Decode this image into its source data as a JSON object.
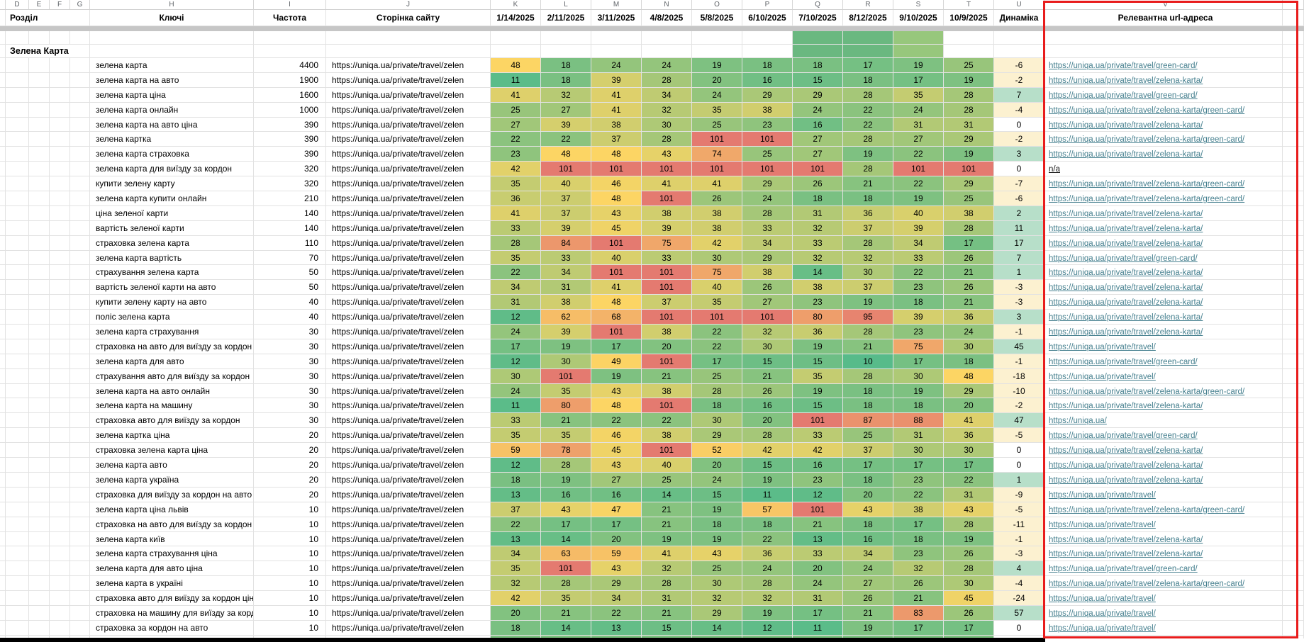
{
  "sheet": {
    "column_letters": [
      "D",
      "E",
      "F",
      "G",
      "H",
      "I",
      "J",
      "K",
      "L",
      "M",
      "N",
      "O",
      "P",
      "Q",
      "R",
      "S",
      "T",
      "U",
      "V"
    ],
    "headers": {
      "section": "Розділ",
      "keywords": "Ключі",
      "frequency": "Частота",
      "page": "Сторінка сайту",
      "dynamics": "Динаміка",
      "relevant_url": "Релевантна url-адреса"
    },
    "dates": [
      "1/14/2025",
      "2/11/2025",
      "3/11/2025",
      "4/8/2025",
      "5/8/2025",
      "6/10/2025",
      "7/10/2025",
      "8/12/2025",
      "9/10/2025",
      "10/9/2025"
    ],
    "section_title": "Зелена Карта",
    "page_url_clipped": "https://uniqa.ua/private/travel/zelen",
    "rows": [
      {
        "keyword": "зелена карта",
        "frequency": 4400,
        "positions": [
          48,
          18,
          24,
          24,
          19,
          18,
          18,
          17,
          19,
          25
        ],
        "dynamics": -6,
        "url": "https://uniqa.ua/private/travel/green-card/"
      },
      {
        "keyword": "зелена карта на авто",
        "frequency": 1900,
        "positions": [
          11,
          18,
          39,
          28,
          20,
          16,
          15,
          18,
          17,
          19
        ],
        "dynamics": -2,
        "url": "https://uniqa.ua/private/travel/zelena-karta/"
      },
      {
        "keyword": "зелена карта ціна",
        "frequency": 1600,
        "positions": [
          41,
          32,
          41,
          34,
          24,
          29,
          29,
          28,
          35,
          28
        ],
        "dynamics": 7,
        "url": "https://uniqa.ua/private/travel/green-card/"
      },
      {
        "keyword": "зелена карта онлайн",
        "frequency": 1000,
        "positions": [
          25,
          27,
          41,
          32,
          35,
          38,
          24,
          22,
          24,
          28
        ],
        "dynamics": -4,
        "url": "https://uniqa.ua/private/travel/zelena-karta/green-card/"
      },
      {
        "keyword": "зелена карта на авто ціна",
        "frequency": 390,
        "positions": [
          27,
          39,
          38,
          30,
          25,
          23,
          16,
          22,
          31,
          31
        ],
        "dynamics": 0,
        "url": "https://uniqa.ua/private/travel/zelena-karta/"
      },
      {
        "keyword": "зелена картка",
        "frequency": 390,
        "positions": [
          22,
          22,
          37,
          28,
          101,
          101,
          27,
          28,
          27,
          29
        ],
        "dynamics": -2,
        "url": "https://uniqa.ua/private/travel/zelena-karta/green-card/"
      },
      {
        "keyword": "зелена карта страховка",
        "frequency": 390,
        "positions": [
          23,
          48,
          48,
          43,
          74,
          25,
          27,
          19,
          22,
          19
        ],
        "dynamics": 3,
        "url": "https://uniqa.ua/private/travel/zelena-karta/"
      },
      {
        "keyword": "зелена карта для виїзду за кордон",
        "frequency": 320,
        "positions": [
          42,
          101,
          101,
          101,
          101,
          101,
          101,
          28,
          101,
          101
        ],
        "dynamics": 0,
        "url": "n/a"
      },
      {
        "keyword": "купити зелену карту",
        "frequency": 320,
        "positions": [
          35,
          40,
          46,
          41,
          41,
          29,
          26,
          21,
          22,
          29
        ],
        "dynamics": -7,
        "url": "https://uniqa.ua/private/travel/zelena-karta/green-card/"
      },
      {
        "keyword": "зелена карта купити онлайн",
        "frequency": 210,
        "positions": [
          36,
          37,
          48,
          101,
          26,
          24,
          18,
          18,
          19,
          25
        ],
        "dynamics": -6,
        "url": "https://uniqa.ua/private/travel/zelena-karta/green-card/"
      },
      {
        "keyword": "ціна зеленої карти",
        "frequency": 140,
        "positions": [
          41,
          37,
          43,
          38,
          38,
          28,
          31,
          36,
          40,
          38
        ],
        "dynamics": 2,
        "url": "https://uniqa.ua/private/travel/zelena-karta/"
      },
      {
        "keyword": "вартість зеленої карти",
        "frequency": 140,
        "positions": [
          33,
          39,
          45,
          39,
          38,
          33,
          32,
          37,
          39,
          28
        ],
        "dynamics": 11,
        "url": "https://uniqa.ua/private/travel/zelena-karta/"
      },
      {
        "keyword": "страховка зелена карта",
        "frequency": 110,
        "positions": [
          28,
          84,
          101,
          75,
          42,
          34,
          33,
          28,
          34,
          17
        ],
        "dynamics": 17,
        "url": "https://uniqa.ua/private/travel/zelena-karta/"
      },
      {
        "keyword": "зелена карта вартість",
        "frequency": 70,
        "positions": [
          35,
          33,
          40,
          33,
          30,
          29,
          32,
          32,
          33,
          26
        ],
        "dynamics": 7,
        "url": "https://uniqa.ua/private/travel/green-card/"
      },
      {
        "keyword": "страхування зелена карта",
        "frequency": 50,
        "positions": [
          22,
          34,
          101,
          101,
          75,
          38,
          14,
          30,
          22,
          21
        ],
        "dynamics": 1,
        "url": "https://uniqa.ua/private/travel/zelena-karta/"
      },
      {
        "keyword": "вартість зеленої карти на авто",
        "frequency": 50,
        "positions": [
          34,
          31,
          41,
          101,
          40,
          26,
          38,
          37,
          23,
          26
        ],
        "dynamics": -3,
        "url": "https://uniqa.ua/private/travel/zelena-karta/"
      },
      {
        "keyword": "купити зелену карту на авто",
        "frequency": 40,
        "positions": [
          31,
          38,
          48,
          37,
          35,
          27,
          23,
          19,
          18,
          21
        ],
        "dynamics": -3,
        "url": "https://uniqa.ua/private/travel/zelena-karta/"
      },
      {
        "keyword": "поліс зелена карта",
        "frequency": 40,
        "positions": [
          12,
          62,
          68,
          101,
          101,
          101,
          80,
          95,
          39,
          36
        ],
        "dynamics": 3,
        "url": "https://uniqa.ua/private/travel/zelena-karta/"
      },
      {
        "keyword": "зелена карта страхування",
        "frequency": 30,
        "positions": [
          24,
          39,
          101,
          38,
          22,
          32,
          36,
          28,
          23,
          24
        ],
        "dynamics": -1,
        "url": "https://uniqa.ua/private/travel/zelena-karta/"
      },
      {
        "keyword": "страховка на авто для виїзду за кордон",
        "frequency": 30,
        "positions": [
          17,
          19,
          17,
          20,
          22,
          30,
          19,
          21,
          75,
          30
        ],
        "dynamics": 45,
        "url": "https://uniqa.ua/private/travel/"
      },
      {
        "keyword": "зелена карта для авто",
        "frequency": 30,
        "positions": [
          12,
          30,
          49,
          101,
          17,
          15,
          15,
          10,
          17,
          18
        ],
        "dynamics": -1,
        "url": "https://uniqa.ua/private/travel/green-card/"
      },
      {
        "keyword": "страхування авто для виїзду за кордон",
        "frequency": 30,
        "positions": [
          30,
          101,
          19,
          21,
          25,
          21,
          35,
          28,
          30,
          48
        ],
        "dynamics": -18,
        "url": "https://uniqa.ua/private/travel/"
      },
      {
        "keyword": "зелена карта на авто онлайн",
        "frequency": 30,
        "positions": [
          24,
          35,
          43,
          38,
          28,
          26,
          19,
          18,
          19,
          29
        ],
        "dynamics": -10,
        "url": "https://uniqa.ua/private/travel/zelena-karta/green-card/"
      },
      {
        "keyword": "зелена карта на машину",
        "frequency": 30,
        "positions": [
          11,
          80,
          48,
          101,
          18,
          16,
          15,
          18,
          18,
          20
        ],
        "dynamics": -2,
        "url": "https://uniqa.ua/private/travel/zelena-karta/"
      },
      {
        "keyword": "страховка авто для виїзду за кордон",
        "frequency": 30,
        "positions": [
          33,
          21,
          22,
          22,
          30,
          20,
          101,
          87,
          88,
          41
        ],
        "dynamics": 47,
        "url": "https://uniqa.ua/"
      },
      {
        "keyword": "зелена картка ціна",
        "frequency": 20,
        "positions": [
          35,
          35,
          46,
          38,
          29,
          28,
          33,
          25,
          31,
          36
        ],
        "dynamics": -5,
        "url": "https://uniqa.ua/private/travel/green-card/"
      },
      {
        "keyword": "страховка зелена карта ціна",
        "frequency": 20,
        "positions": [
          59,
          78,
          45,
          101,
          52,
          42,
          42,
          37,
          30,
          30
        ],
        "dynamics": 0,
        "url": "https://uniqa.ua/private/travel/zelena-karta/"
      },
      {
        "keyword": "зелена карта авто",
        "frequency": 20,
        "positions": [
          12,
          28,
          43,
          40,
          20,
          15,
          16,
          17,
          17,
          17
        ],
        "dynamics": 0,
        "url": "https://uniqa.ua/private/travel/zelena-karta/"
      },
      {
        "keyword": "зелена карта україна",
        "frequency": 20,
        "positions": [
          18,
          19,
          27,
          25,
          24,
          19,
          23,
          18,
          23,
          22
        ],
        "dynamics": 1,
        "url": "https://uniqa.ua/private/travel/zelena-karta/"
      },
      {
        "keyword": "страховка для виїзду за кордон на авто",
        "frequency": 20,
        "positions": [
          13,
          16,
          16,
          14,
          15,
          11,
          12,
          20,
          22,
          31
        ],
        "dynamics": -9,
        "url": "https://uniqa.ua/private/travel/"
      },
      {
        "keyword": "зелена карта ціна львів",
        "frequency": 10,
        "positions": [
          37,
          43,
          47,
          21,
          19,
          57,
          101,
          43,
          38,
          43
        ],
        "dynamics": -5,
        "url": "https://uniqa.ua/private/travel/zelena-karta/green-card/"
      },
      {
        "keyword": "страховка на авто для виїзду за кордон ц",
        "frequency": 10,
        "positions": [
          22,
          17,
          17,
          21,
          18,
          18,
          21,
          18,
          17,
          28
        ],
        "dynamics": -11,
        "url": "https://uniqa.ua/private/travel/"
      },
      {
        "keyword": "зелена карта київ",
        "frequency": 10,
        "positions": [
          13,
          14,
          20,
          19,
          19,
          22,
          13,
          16,
          18,
          19
        ],
        "dynamics": -1,
        "url": "https://uniqa.ua/private/travel/zelena-karta/"
      },
      {
        "keyword": "зелена карта страхування ціна",
        "frequency": 10,
        "positions": [
          34,
          63,
          59,
          41,
          43,
          36,
          33,
          34,
          23,
          26
        ],
        "dynamics": -3,
        "url": "https://uniqa.ua/private/travel/zelena-karta/"
      },
      {
        "keyword": "зелена карта для авто ціна",
        "frequency": 10,
        "positions": [
          35,
          101,
          43,
          32,
          25,
          24,
          20,
          24,
          32,
          28
        ],
        "dynamics": 4,
        "url": "https://uniqa.ua/private/travel/green-card/"
      },
      {
        "keyword": "зелена карта в україні",
        "frequency": 10,
        "positions": [
          32,
          28,
          29,
          28,
          30,
          28,
          24,
          27,
          26,
          30
        ],
        "dynamics": -4,
        "url": "https://uniqa.ua/private/travel/zelena-karta/green-card/"
      },
      {
        "keyword": "страховка авто для виїзду за кордон ціна",
        "frequency": 10,
        "positions": [
          42,
          35,
          34,
          31,
          32,
          32,
          31,
          26,
          21,
          45
        ],
        "dynamics": -24,
        "url": "https://uniqa.ua/private/travel/"
      },
      {
        "keyword": "страховка на машину для виїзду за кордо",
        "frequency": 10,
        "positions": [
          20,
          21,
          22,
          21,
          29,
          19,
          17,
          21,
          83,
          26
        ],
        "dynamics": 57,
        "url": "https://uniqa.ua/private/travel/"
      },
      {
        "keyword": "страховка за кордон на авто",
        "frequency": 10,
        "positions": [
          18,
          14,
          13,
          15,
          14,
          12,
          11,
          19,
          17,
          17
        ],
        "dynamics": 0,
        "url": "https://uniqa.ua/private/travel/"
      }
    ],
    "colors": {
      "link": "#46808f",
      "selection_border": "#e81c1c",
      "green_dark": "#6ab880",
      "green_light": "#97c77c",
      "sliver_green": "#7cc17f",
      "dynamics_negative": "#fcf1d0",
      "dynamics_positive": "#b7dfc9",
      "dynamics_zero": "#ffffff",
      "heat_scale": {
        "low_value": 10,
        "low_rgb": [
          87,
          187,
          138
        ],
        "mid_value": 48,
        "mid_rgb": [
          252,
          213,
          100
        ],
        "high_value": 101,
        "high_rgb": [
          228,
          122,
          112
        ]
      }
    }
  }
}
